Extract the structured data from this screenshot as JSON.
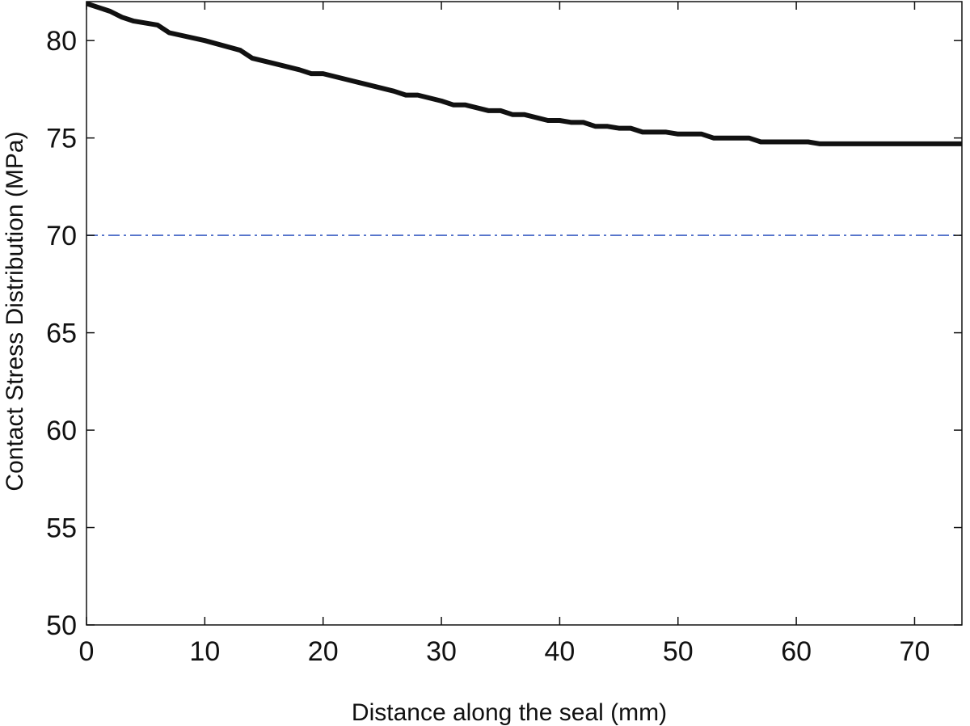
{
  "chart_data": {
    "type": "line",
    "title": "",
    "xlabel": "Distance along the seal (mm)",
    "ylabel": "Contact Stress Distribution (MPa)",
    "xlim": [
      0,
      74
    ],
    "ylim": [
      50,
      82
    ],
    "x_ticks": [
      0,
      10,
      20,
      30,
      40,
      50,
      60,
      70
    ],
    "x_tick_labels": [
      "0",
      "10",
      "20",
      "30",
      "40",
      "50",
      "60",
      "70"
    ],
    "y_ticks": [
      50,
      55,
      60,
      65,
      70,
      75,
      80
    ],
    "y_tick_labels": [
      "50",
      "55",
      "60",
      "65",
      "70",
      "75",
      "80"
    ],
    "grid": false,
    "legend": "none",
    "series": [
      {
        "style": "solid",
        "color": "#111111",
        "x": [
          0,
          2,
          3,
          4,
          6,
          7,
          10,
          13,
          14,
          16,
          18,
          19,
          20,
          22,
          24,
          26,
          27,
          28,
          30,
          31,
          32,
          34,
          35,
          36,
          37,
          39,
          40,
          41,
          42,
          43,
          44,
          45,
          46,
          47,
          48,
          49,
          50,
          51,
          52,
          53,
          56,
          57,
          60,
          61,
          62,
          74
        ],
        "y": [
          81.9,
          81.5,
          81.2,
          81.0,
          80.8,
          80.4,
          80.0,
          79.5,
          79.1,
          78.8,
          78.5,
          78.3,
          78.3,
          78.0,
          77.7,
          77.4,
          77.2,
          77.2,
          76.9,
          76.7,
          76.7,
          76.4,
          76.4,
          76.2,
          76.2,
          75.9,
          75.9,
          75.8,
          75.8,
          75.6,
          75.6,
          75.5,
          75.5,
          75.3,
          75.3,
          75.3,
          75.2,
          75.2,
          75.2,
          75.0,
          75.0,
          74.8,
          74.8,
          74.8,
          74.7,
          74.7
        ]
      },
      {
        "style": "dash-dot",
        "color": "#3b5fc4",
        "x": [
          0,
          74
        ],
        "y": [
          70,
          70
        ]
      }
    ]
  }
}
